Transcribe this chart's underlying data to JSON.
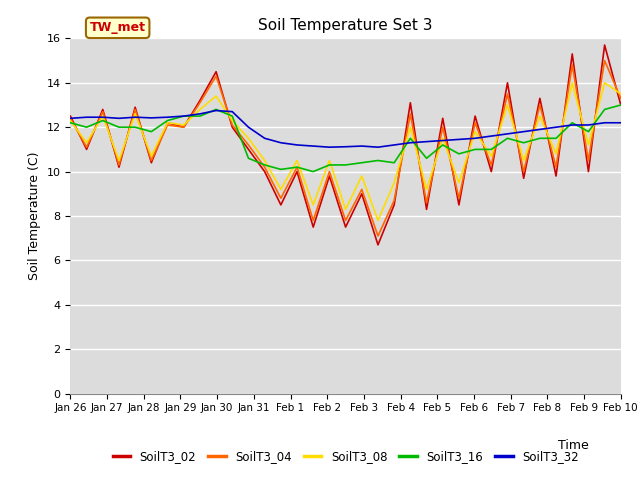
{
  "title": "Soil Temperature Set 3",
  "xlabel": "Time",
  "ylabel": "Soil Temperature (C)",
  "ylim": [
    0,
    16
  ],
  "yticks": [
    0,
    2,
    4,
    6,
    8,
    10,
    12,
    14,
    16
  ],
  "bg_color": "#dcdcdc",
  "annotation_text": "TW_met",
  "annotation_bg": "#ffffcc",
  "annotation_border": "#996600",
  "series_colors": {
    "SoilT3_02": "#cc0000",
    "SoilT3_04": "#ff6600",
    "SoilT3_08": "#ffdd00",
    "SoilT3_16": "#00bb00",
    "SoilT3_32": "#0000cc"
  },
  "xtick_labels": [
    "Jan 26",
    "Jan 27",
    "Jan 28",
    "Jan 29",
    "Jan 30",
    "Jan 31",
    "Feb 1",
    "Feb 2",
    "Feb 3",
    "Feb 4",
    "Feb 5",
    "Feb 6",
    "Feb 7",
    "Feb 8",
    "Feb 9",
    "Feb 10"
  ],
  "SoilT3_02": [
    12.5,
    11.0,
    12.8,
    10.2,
    12.9,
    10.4,
    12.2,
    12.0,
    13.2,
    14.5,
    12.0,
    11.0,
    10.0,
    8.5,
    10.0,
    7.5,
    9.8,
    7.5,
    9.0,
    6.7,
    8.5,
    13.1,
    8.3,
    12.4,
    8.5,
    12.5,
    10.0,
    14.0,
    9.7,
    13.3,
    9.8,
    15.3,
    10.0,
    15.7,
    13.0
  ],
  "SoilT3_04": [
    12.4,
    11.1,
    12.7,
    10.3,
    12.8,
    10.5,
    12.1,
    12.0,
    13.1,
    14.3,
    12.1,
    11.2,
    10.2,
    8.8,
    10.2,
    7.8,
    10.0,
    7.8,
    9.2,
    7.1,
    8.7,
    12.6,
    8.6,
    12.0,
    8.8,
    12.2,
    10.3,
    13.5,
    10.0,
    13.0,
    10.2,
    14.8,
    10.5,
    15.0,
    13.3
  ],
  "SoilT3_08": [
    12.3,
    11.3,
    12.5,
    10.5,
    12.6,
    10.7,
    12.2,
    12.1,
    12.8,
    13.4,
    12.3,
    11.5,
    10.5,
    9.2,
    10.5,
    8.5,
    10.5,
    8.3,
    9.8,
    7.8,
    9.5,
    12.0,
    9.2,
    11.5,
    9.5,
    11.8,
    10.7,
    13.0,
    10.5,
    12.5,
    10.8,
    14.0,
    11.2,
    14.0,
    13.5
  ],
  "SoilT3_16": [
    12.2,
    12.0,
    12.3,
    12.0,
    12.0,
    11.8,
    12.3,
    12.5,
    12.5,
    12.8,
    12.5,
    10.6,
    10.3,
    10.1,
    10.2,
    10.0,
    10.3,
    10.3,
    10.4,
    10.5,
    10.4,
    11.5,
    10.6,
    11.2,
    10.8,
    11.0,
    11.0,
    11.5,
    11.3,
    11.5,
    11.5,
    12.2,
    11.8,
    12.8,
    13.0
  ],
  "SoilT3_32": [
    12.4,
    12.45,
    12.45,
    12.4,
    12.45,
    12.42,
    12.45,
    12.5,
    12.6,
    12.75,
    12.7,
    12.0,
    11.5,
    11.3,
    11.2,
    11.15,
    11.1,
    11.12,
    11.15,
    11.1,
    11.2,
    11.3,
    11.35,
    11.4,
    11.45,
    11.5,
    11.6,
    11.7,
    11.8,
    11.9,
    12.0,
    12.1,
    12.1,
    12.2,
    12.2
  ]
}
